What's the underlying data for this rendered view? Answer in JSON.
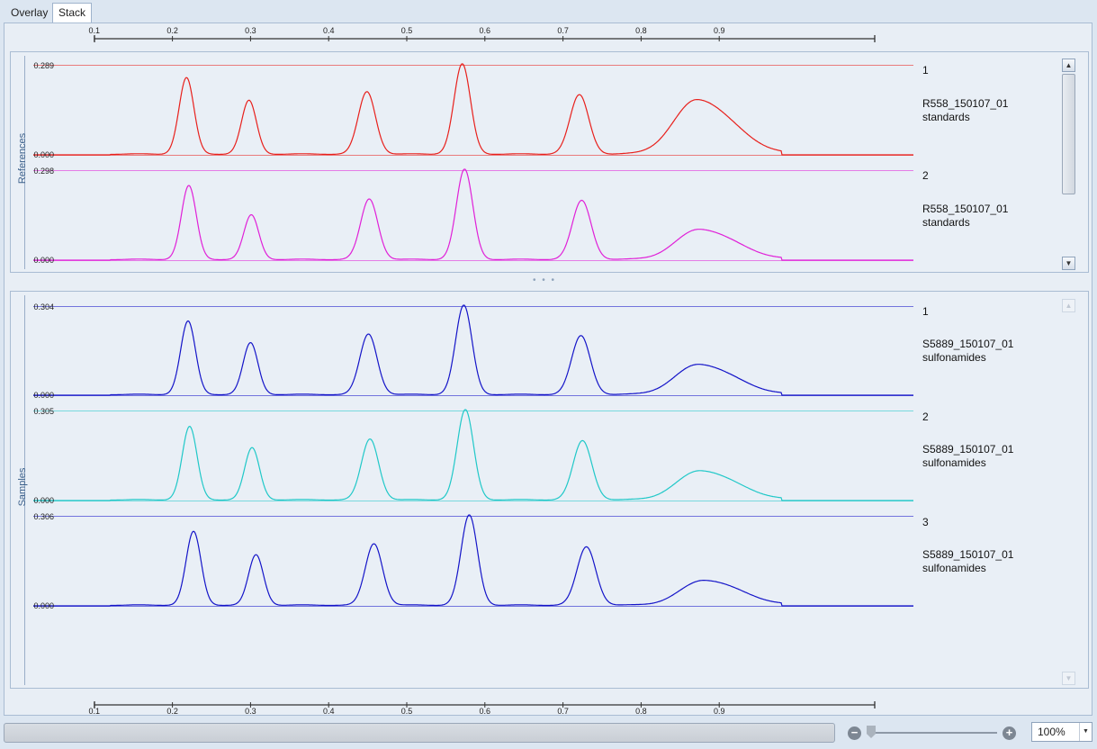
{
  "tabs": [
    {
      "label": "Overlay",
      "active": false
    },
    {
      "label": "Stack",
      "active": true
    }
  ],
  "axis": {
    "ticks": [
      "0.1",
      "0.2",
      "0.3",
      "0.4",
      "0.5",
      "0.6",
      "0.7",
      "0.8",
      "0.9"
    ],
    "range": [
      0.0,
      1.0
    ]
  },
  "references": {
    "label": "References",
    "traces": [
      {
        "index": "1",
        "name": "R558_150107_01",
        "desc": "standards",
        "ymax": "0.289",
        "ymin": "0.000",
        "color": "#e8201c"
      },
      {
        "index": "2",
        "name": "R558_150107_01",
        "desc": "standards",
        "ymax": "0.298",
        "ymin": "0.000",
        "color": "#e020d8"
      }
    ]
  },
  "samples": {
    "label": "Samples",
    "traces": [
      {
        "index": "1",
        "name": "S5889_150107_01",
        "desc": "sulfonamides",
        "ymax": "0.304",
        "ymin": "0.000",
        "color": "#1414c8"
      },
      {
        "index": "2",
        "name": "S5889_150107_01",
        "desc": "sulfonamides",
        "ymax": "0.305",
        "ymin": "0.000",
        "color": "#20c8c8"
      },
      {
        "index": "3",
        "name": "S5889_150107_01",
        "desc": "sulfonamides",
        "ymax": "0.306",
        "ymin": "0.000",
        "color": "#1414c8"
      }
    ]
  },
  "chart_data": {
    "type": "line",
    "x_range": [
      0.0,
      1.0
    ],
    "peaks_x": [
      0.218,
      0.298,
      0.449,
      0.571,
      0.721,
      0.872
    ],
    "series": [
      {
        "group": "References",
        "index": "1",
        "ymax": 0.289,
        "peak_heights": [
          0.245,
          0.172,
          0.2,
          0.289,
          0.19,
          0.175
        ],
        "shift": 0.0
      },
      {
        "group": "References",
        "index": "2",
        "ymax": 0.298,
        "peak_heights": [
          0.244,
          0.147,
          0.2,
          0.298,
          0.195,
          0.1
        ],
        "shift": 0.003
      },
      {
        "group": "Samples",
        "index": "1",
        "ymax": 0.304,
        "peak_heights": [
          0.25,
          0.176,
          0.206,
          0.304,
          0.2,
          0.103
        ],
        "shift": 0.002
      },
      {
        "group": "Samples",
        "index": "2",
        "ymax": 0.305,
        "peak_heights": [
          0.248,
          0.176,
          0.206,
          0.305,
          0.2,
          0.099
        ],
        "shift": 0.004
      },
      {
        "group": "Samples",
        "index": "3",
        "ymax": 0.306,
        "peak_heights": [
          0.25,
          0.171,
          0.209,
          0.306,
          0.198,
          0.085
        ],
        "shift": 0.009
      }
    ]
  },
  "status": {
    "zoom": "100%",
    "zoom_level": 0.0,
    "zoom_out_symbol": "−",
    "zoom_in_symbol": "+"
  }
}
